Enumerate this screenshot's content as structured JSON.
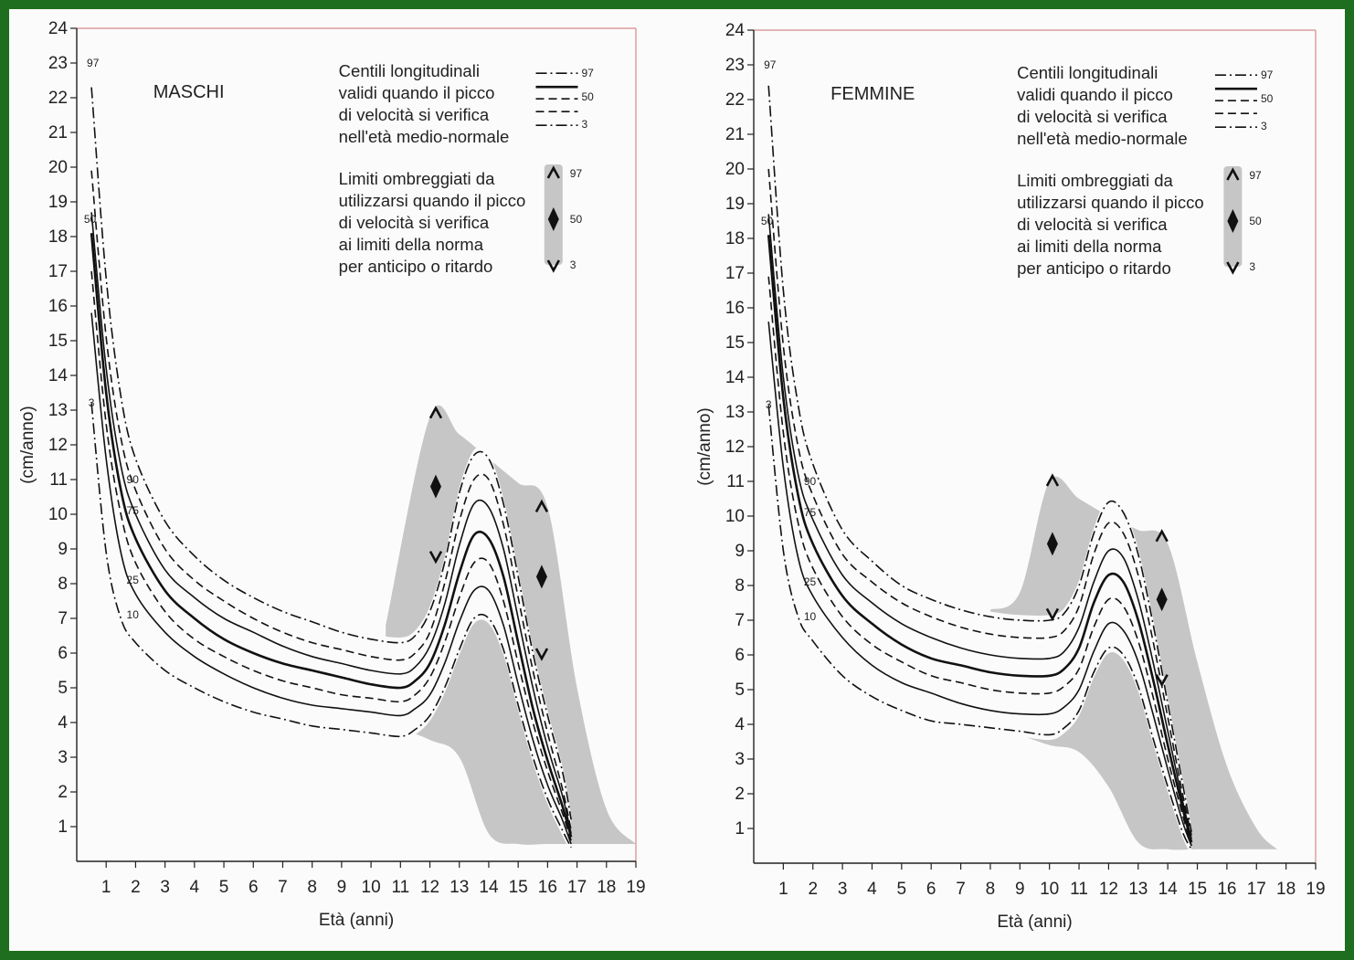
{
  "chart_data": [
    {
      "type": "line",
      "title": "MASCHI",
      "xlabel": "Età (anni)",
      "ylabel": "(cm/anno)",
      "xlim": [
        0,
        19
      ],
      "ylim": [
        0,
        24
      ],
      "x_ticks": [
        "1",
        "2",
        "3",
        "4",
        "5",
        "6",
        "7",
        "8",
        "9",
        "10",
        "11",
        "12",
        "13",
        "14",
        "15",
        "16",
        "17",
        "18",
        "19"
      ],
      "y_ticks": [
        "1",
        "2",
        "3",
        "4",
        "5",
        "6",
        "7",
        "8",
        "9",
        "10",
        "11",
        "12",
        "13",
        "14",
        "15",
        "16",
        "17",
        "18",
        "19",
        "20",
        "21",
        "22",
        "23",
        "24"
      ],
      "legend": {
        "lines_text": [
          "Centili longitudinali",
          "validi quando il picco",
          "di velocità si verifica",
          "nell'età medio-normale"
        ],
        "lines_keys": [
          "97",
          "50",
          "3"
        ],
        "shade_text": [
          "Limiti ombreggiati da",
          "utilizzarsi quando il picco",
          "di velocità si verifica",
          "ai limiti della norma",
          "per anticipo o ritardo"
        ],
        "shade_keys": [
          "97",
          "50",
          "3"
        ]
      },
      "curve_labels": [
        "97",
        "50",
        "3",
        "90",
        "75",
        "25",
        "10"
      ],
      "x": [
        0.5,
        1,
        1.5,
        2,
        3,
        4,
        5,
        6,
        7,
        8,
        9,
        10,
        11,
        11.5,
        12,
        12.5,
        13,
        13.5,
        14,
        14.5,
        15,
        15.5,
        16,
        16.5,
        16.8
      ],
      "series": [
        {
          "name": "97",
          "style": "dashdot",
          "values": [
            22.3,
            16.8,
            13.4,
            11.6,
            9.8,
            8.8,
            8.1,
            7.6,
            7.2,
            6.9,
            6.6,
            6.4,
            6.3,
            6.5,
            7.2,
            8.6,
            10.6,
            11.7,
            11.6,
            10.3,
            8.2,
            6.0,
            4.2,
            2.6,
            1.2
          ]
        },
        {
          "name": "90",
          "style": "dashed",
          "values": [
            19.9,
            15.1,
            12.2,
            10.7,
            9.0,
            8.1,
            7.5,
            7.0,
            6.6,
            6.3,
            6.1,
            5.9,
            5.8,
            6.0,
            6.6,
            8.0,
            9.8,
            11.0,
            11.0,
            9.7,
            7.6,
            5.5,
            3.7,
            2.1,
            0.9
          ]
        },
        {
          "name": "75",
          "style": "solid",
          "values": [
            18.7,
            14.2,
            11.4,
            10.0,
            8.4,
            7.6,
            7.0,
            6.6,
            6.2,
            5.9,
            5.7,
            5.5,
            5.4,
            5.6,
            6.2,
            7.4,
            9.1,
            10.3,
            10.2,
            9.0,
            7.0,
            5.0,
            3.3,
            1.9,
            0.8
          ]
        },
        {
          "name": "50",
          "style": "solidbold",
          "values": [
            18.1,
            13.5,
            10.7,
            9.3,
            7.8,
            7.0,
            6.4,
            6.0,
            5.7,
            5.5,
            5.3,
            5.1,
            5.0,
            5.2,
            5.7,
            6.8,
            8.3,
            9.4,
            9.3,
            8.2,
            6.3,
            4.4,
            2.9,
            1.6,
            0.7
          ]
        },
        {
          "name": "25",
          "style": "dashed",
          "values": [
            17.0,
            12.6,
            10.0,
            8.6,
            7.2,
            6.4,
            5.9,
            5.5,
            5.2,
            5.0,
            4.8,
            4.7,
            4.6,
            4.8,
            5.3,
            6.3,
            7.6,
            8.6,
            8.6,
            7.5,
            5.7,
            4.0,
            2.6,
            1.4,
            0.6
          ]
        },
        {
          "name": "10",
          "style": "solid",
          "values": [
            15.8,
            11.6,
            8.9,
            7.7,
            6.6,
            5.9,
            5.4,
            5.0,
            4.7,
            4.5,
            4.4,
            4.3,
            4.2,
            4.4,
            4.8,
            5.7,
            6.9,
            7.8,
            7.8,
            6.8,
            5.1,
            3.5,
            2.2,
            1.2,
            0.5
          ]
        },
        {
          "name": "3",
          "style": "dashdot",
          "values": [
            13.2,
            8.9,
            7.0,
            6.3,
            5.5,
            5.0,
            4.6,
            4.3,
            4.1,
            3.9,
            3.8,
            3.7,
            3.6,
            3.8,
            4.2,
            5.0,
            6.1,
            7.0,
            7.0,
            6.1,
            4.5,
            3.0,
            1.8,
            0.9,
            0.4
          ]
        }
      ],
      "shaded_region": {
        "x": [
          10.5,
          12,
          13,
          14,
          15,
          16,
          17,
          18,
          19
        ],
        "upper": [
          6.8,
          12.8,
          12.3,
          11.6,
          10.9,
          10.2,
          5.0,
          1.5,
          0.5
        ],
        "lower": [
          4.0,
          3.5,
          3.0,
          0.8,
          0.5,
          0.5,
          0.5,
          0.5,
          0.5
        ]
      },
      "peak_markers": [
        {
          "x": 12.2,
          "y97": 12.9,
          "y50": 10.8,
          "y3": 8.8
        },
        {
          "x": 15.8,
          "y97": 10.2,
          "y50": 8.2,
          "y3": 6.0
        }
      ]
    },
    {
      "type": "line",
      "title": "FEMMINE",
      "xlabel": "Età (anni)",
      "ylabel": "(cm/anno)",
      "xlim": [
        0,
        19
      ],
      "ylim": [
        0,
        24
      ],
      "x_ticks": [
        "1",
        "2",
        "3",
        "4",
        "5",
        "6",
        "7",
        "8",
        "9",
        "10",
        "11",
        "12",
        "13",
        "14",
        "15",
        "16",
        "17",
        "18",
        "19"
      ],
      "y_ticks": [
        "1",
        "2",
        "3",
        "4",
        "5",
        "6",
        "7",
        "8",
        "9",
        "10",
        "11",
        "12",
        "13",
        "14",
        "15",
        "16",
        "17",
        "18",
        "19",
        "20",
        "21",
        "22",
        "23",
        "24"
      ],
      "legend": {
        "lines_text": [
          "Centili longitudinali",
          "validi quando il picco",
          "di velocità si verifica",
          "nell'età medio-normale"
        ],
        "lines_keys": [
          "97",
          "50",
          "3"
        ],
        "shade_text": [
          "Limiti ombreggiati da",
          "utilizzarsi quando il picco",
          "di velocità si verifica",
          "ai limiti della norma",
          "per anticipo o ritardo"
        ],
        "shade_keys": [
          "97",
          "50",
          "3"
        ]
      },
      "curve_labels": [
        "97",
        "50",
        "3",
        "90",
        "75",
        "25",
        "10"
      ],
      "x": [
        0.5,
        1,
        1.5,
        2,
        3,
        4,
        5,
        6,
        7,
        8,
        9,
        10,
        10.5,
        11,
        11.5,
        12,
        12.5,
        13,
        13.5,
        14,
        14.5,
        14.8
      ],
      "series": [
        {
          "name": "97",
          "style": "dashdot",
          "values": [
            22.4,
            16.5,
            13.2,
            11.5,
            9.6,
            8.7,
            8.0,
            7.6,
            7.3,
            7.1,
            7.0,
            7.0,
            7.2,
            8.0,
            9.5,
            10.4,
            10.1,
            8.9,
            6.9,
            4.6,
            2.3,
            0.9
          ]
        },
        {
          "name": "90",
          "style": "dashed",
          "values": [
            20.0,
            14.9,
            12.0,
            10.6,
            8.9,
            8.1,
            7.5,
            7.1,
            6.8,
            6.6,
            6.5,
            6.5,
            6.7,
            7.4,
            8.9,
            9.8,
            9.5,
            8.3,
            6.4,
            4.2,
            2.0,
            0.8
          ]
        },
        {
          "name": "75",
          "style": "solid",
          "values": [
            18.7,
            14.0,
            11.2,
            9.9,
            8.3,
            7.5,
            6.9,
            6.5,
            6.2,
            6.0,
            5.9,
            5.9,
            6.1,
            6.8,
            8.1,
            9.0,
            8.8,
            7.6,
            5.8,
            3.8,
            1.8,
            0.7
          ]
        },
        {
          "name": "50",
          "style": "solidbold",
          "values": [
            18.1,
            13.4,
            10.6,
            9.2,
            7.7,
            6.9,
            6.3,
            5.9,
            5.7,
            5.5,
            5.4,
            5.4,
            5.6,
            6.2,
            7.5,
            8.3,
            8.1,
            7.0,
            5.3,
            3.4,
            1.6,
            0.6
          ]
        },
        {
          "name": "25",
          "style": "dashed",
          "values": [
            16.9,
            12.4,
            9.8,
            8.5,
            7.1,
            6.3,
            5.8,
            5.4,
            5.2,
            5.0,
            4.9,
            4.9,
            5.1,
            5.6,
            6.8,
            7.6,
            7.4,
            6.4,
            4.8,
            3.0,
            1.4,
            0.5
          ]
        },
        {
          "name": "10",
          "style": "solid",
          "values": [
            15.6,
            11.4,
            8.8,
            7.7,
            6.5,
            5.7,
            5.2,
            4.9,
            4.6,
            4.4,
            4.3,
            4.3,
            4.5,
            5.0,
            6.1,
            6.9,
            6.7,
            5.8,
            4.3,
            2.7,
            1.2,
            0.5
          ]
        },
        {
          "name": "3",
          "style": "dashdot",
          "values": [
            13.2,
            9.0,
            7.1,
            6.4,
            5.4,
            4.8,
            4.4,
            4.1,
            4.0,
            3.9,
            3.8,
            3.7,
            3.9,
            4.4,
            5.5,
            6.2,
            6.0,
            5.1,
            3.6,
            2.2,
            0.9,
            0.4
          ]
        }
      ],
      "shaded_region": {
        "x": [
          8,
          9,
          10,
          11,
          12,
          13,
          14,
          15,
          16,
          17,
          17.7
        ],
        "upper": [
          7.3,
          7.8,
          11.0,
          10.5,
          10.0,
          9.6,
          9.2,
          5.8,
          2.8,
          1.0,
          0.4
        ],
        "lower": [
          4.0,
          3.7,
          3.4,
          3.2,
          2.2,
          0.6,
          0.4,
          0.4,
          0.4,
          0.4,
          0.4
        ]
      },
      "peak_markers": [
        {
          "x": 10.1,
          "y97": 11.0,
          "y50": 9.2,
          "y3": 7.2
        },
        {
          "x": 13.8,
          "y97": 9.4,
          "y50": 7.6,
          "y3": 5.3
        }
      ]
    }
  ]
}
